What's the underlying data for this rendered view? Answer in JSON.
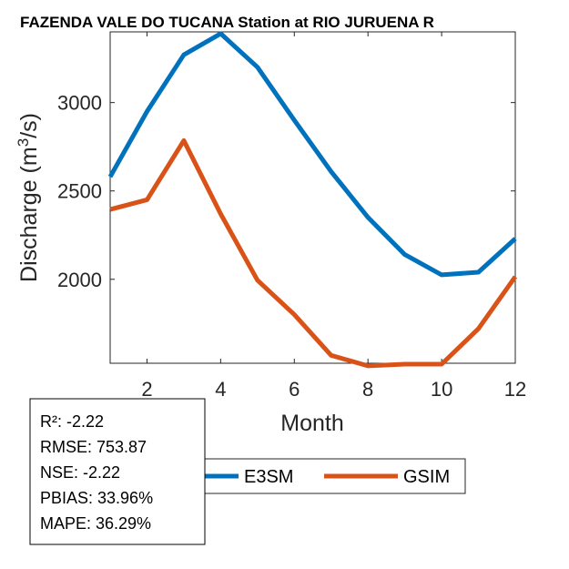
{
  "chart_data": {
    "type": "line",
    "title": "FAZENDA VALE DO TUCANA  Station at  RIO JURUENA  R",
    "xlabel": "Month",
    "ylabel_main": "Discharge (m",
    "ylabel_sup": "3",
    "ylabel_tail": "/s)",
    "xlim": [
      1,
      12
    ],
    "ylim": [
      1525,
      3400
    ],
    "x_ticks": [
      2,
      4,
      6,
      8,
      10,
      12
    ],
    "y_ticks": [
      2000,
      2500,
      3000
    ],
    "x": [
      1,
      2,
      3,
      4,
      5,
      6,
      7,
      8,
      9,
      10,
      11,
      12
    ],
    "series": [
      {
        "name": "E3SM",
        "color": "#0072BD",
        "values": [
          2580,
          2950,
          3270,
          3390,
          3200,
          2900,
          2610,
          2350,
          2140,
          2025,
          2040,
          2230
        ]
      },
      {
        "name": "GSIM",
        "color": "#D95319",
        "values": [
          2395,
          2450,
          2785,
          2370,
          1995,
          1800,
          1570,
          1510,
          1520,
          1520,
          1720,
          2015
        ]
      }
    ],
    "legend": "bottom"
  },
  "stats": {
    "r2": "R²: -2.22",
    "rmse": "RMSE: 753.87",
    "nse": "NSE: -2.22",
    "pbias": "PBIAS: 33.96%",
    "mape": "MAPE: 36.29%"
  }
}
